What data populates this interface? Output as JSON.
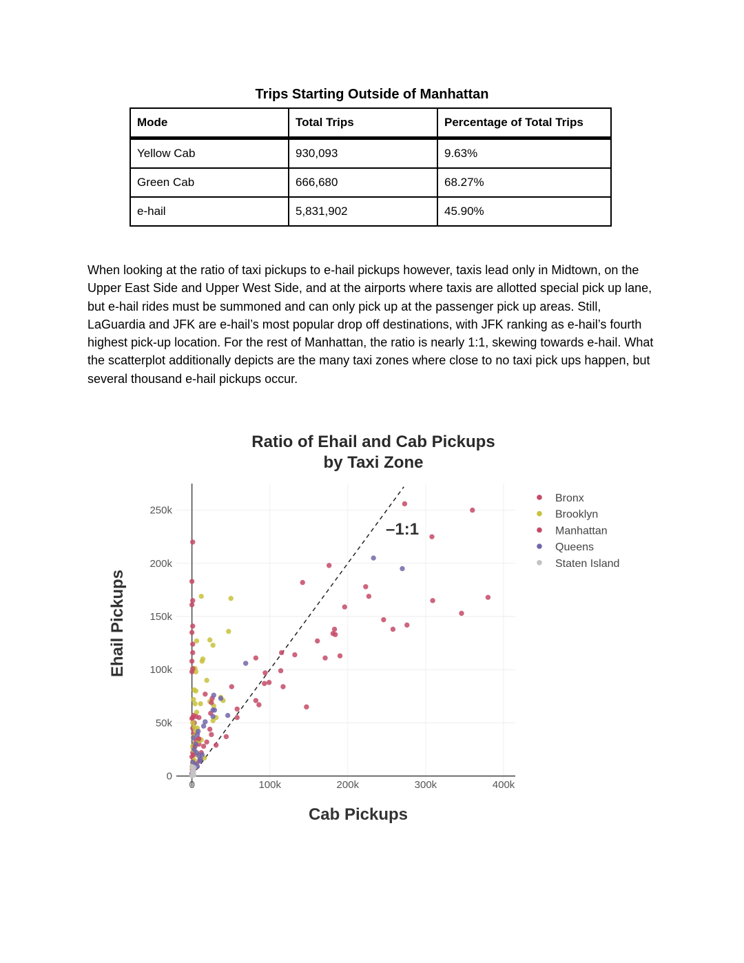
{
  "table": {
    "title": "Trips Starting Outside of Manhattan",
    "headers": [
      "Mode",
      "Total Trips",
      "Percentage of Total Trips"
    ],
    "rows": [
      [
        "Yellow Cab",
        "930,093",
        "9.63%"
      ],
      [
        "Green Cab",
        "666,680",
        "68.27%"
      ],
      [
        "e-hail",
        "5,831,902",
        "45.90%"
      ]
    ]
  },
  "paragraph": "When looking at the ratio of taxi pickups to e-hail pickups however, taxis lead only in Midtown, on the Upper East Side and Upper West Side, and at the airports where taxis are allotted special pick up lane, but e-hail rides must be summoned and can only pick up at the passenger pick up areas. Still, LaGuardia and JFK are e-hail’s most popular drop off destinations, with JFK ranking as e-hail’s fourth highest pick-up location. For the rest of Manhattan, the ratio is nearly 1:1, skewing towards e-hail. What the scatterplot additionally depicts are the many taxi zones where close to no taxi pick ups happen, but several thousand e-hail pickups occur.",
  "chart_data": {
    "type": "scatter",
    "title": [
      "Ratio of Ehail and Cab Pickups",
      "by Taxi Zone"
    ],
    "xlabel": "Cab Pickups",
    "ylabel": "Ehail Pickups",
    "xlim": [
      -20000,
      415000
    ],
    "ylim": [
      -10000,
      275000
    ],
    "x_ticks": [
      0,
      100000,
      200000,
      300000,
      400000
    ],
    "x_tick_labels": [
      "0",
      "100k",
      "200k",
      "300k",
      "400k"
    ],
    "y_ticks": [
      0,
      50000,
      100000,
      150000,
      200000,
      250000
    ],
    "y_tick_labels": [
      "0",
      "50k",
      "100k",
      "150k",
      "200k",
      "250k"
    ],
    "grid": true,
    "legend_position": "top-right",
    "annotation": "–1:1",
    "reference_line": {
      "style": "dashed",
      "slope": 1
    },
    "series": [
      {
        "name": "Bronx",
        "color": "#c44a66",
        "points": [
          [
            0,
            2000
          ],
          [
            500,
            6000
          ],
          [
            1000,
            10000
          ],
          [
            1500,
            14000
          ],
          [
            0,
            18000
          ],
          [
            1000,
            22000
          ],
          [
            2000,
            26000
          ],
          [
            3000,
            30000
          ],
          [
            5000,
            33000
          ],
          [
            8000,
            35000
          ],
          [
            2000,
            40000
          ],
          [
            1000,
            45000
          ],
          [
            3000,
            50000
          ],
          [
            0,
            54000
          ],
          [
            2000,
            57000
          ],
          [
            10000,
            15000
          ],
          [
            6000,
            12000
          ],
          [
            4000,
            8000
          ],
          [
            12000,
            22000
          ],
          [
            15000,
            28000
          ],
          [
            9000,
            30000
          ]
        ]
      },
      {
        "name": "Brooklyn",
        "color": "#c8c23c",
        "points": [
          [
            12000,
            169000
          ],
          [
            50000,
            167000
          ],
          [
            47000,
            136000
          ],
          [
            23000,
            128000
          ],
          [
            6000,
            127000
          ],
          [
            27000,
            123000
          ],
          [
            14000,
            110000
          ],
          [
            13000,
            108000
          ],
          [
            2000,
            101000
          ],
          [
            4000,
            101000
          ],
          [
            5000,
            98000
          ],
          [
            19000,
            90000
          ],
          [
            3000,
            81000
          ],
          [
            5000,
            80000
          ],
          [
            2000,
            72000
          ],
          [
            4000,
            68000
          ],
          [
            11000,
            68000
          ],
          [
            40000,
            71000
          ],
          [
            37000,
            74000
          ],
          [
            28000,
            66000
          ],
          [
            23000,
            70000
          ],
          [
            6000,
            60000
          ],
          [
            31000,
            55000
          ],
          [
            27000,
            52000
          ],
          [
            1000,
            50000
          ],
          [
            3000,
            46000
          ],
          [
            7000,
            45000
          ],
          [
            5000,
            42000
          ],
          [
            2000,
            37000
          ],
          [
            12000,
            34000
          ],
          [
            9000,
            33000
          ],
          [
            4000,
            30000
          ],
          [
            1000,
            28000
          ],
          [
            2000,
            24000
          ],
          [
            6000,
            20000
          ],
          [
            16000,
            17000
          ],
          [
            3000,
            15000
          ],
          [
            1000,
            12000
          ],
          [
            500,
            8000
          ],
          [
            1500,
            5000
          ]
        ]
      },
      {
        "name": "Manhattan",
        "color": "#c44a66",
        "points": [
          [
            273000,
            256000
          ],
          [
            360000,
            250000
          ],
          [
            308000,
            225000
          ],
          [
            1000,
            220000
          ],
          [
            176000,
            198000
          ],
          [
            0,
            183000
          ],
          [
            142000,
            182000
          ],
          [
            1000,
            165000
          ],
          [
            0,
            161000
          ],
          [
            223000,
            178000
          ],
          [
            227000,
            169000
          ],
          [
            309000,
            165000
          ],
          [
            380000,
            168000
          ],
          [
            196000,
            159000
          ],
          [
            346000,
            153000
          ],
          [
            246000,
            147000
          ],
          [
            258000,
            138000
          ],
          [
            276000,
            142000
          ],
          [
            1000,
            141000
          ],
          [
            0,
            135000
          ],
          [
            183000,
            138000
          ],
          [
            181000,
            134000
          ],
          [
            184000,
            133000
          ],
          [
            161000,
            127000
          ],
          [
            1000,
            124000
          ],
          [
            115000,
            116000
          ],
          [
            132000,
            114000
          ],
          [
            190000,
            113000
          ],
          [
            171000,
            111000
          ],
          [
            82000,
            111000
          ],
          [
            1000,
            116000
          ],
          [
            0,
            108000
          ],
          [
            1000,
            101000
          ],
          [
            0,
            98000
          ],
          [
            114000,
            99000
          ],
          [
            94000,
            97000
          ],
          [
            99000,
            88000
          ],
          [
            93000,
            87000
          ],
          [
            117000,
            84000
          ],
          [
            51000,
            84000
          ],
          [
            82000,
            71000
          ],
          [
            86000,
            67000
          ],
          [
            147000,
            65000
          ],
          [
            58000,
            63000
          ],
          [
            58000,
            55000
          ],
          [
            5000,
            56000
          ],
          [
            1000,
            55000
          ],
          [
            24000,
            59000
          ],
          [
            26000,
            73000
          ],
          [
            25000,
            69000
          ],
          [
            17000,
            77000
          ],
          [
            9000,
            55000
          ],
          [
            23000,
            44000
          ],
          [
            44000,
            37000
          ],
          [
            25000,
            39000
          ],
          [
            31000,
            29000
          ],
          [
            19000,
            32000
          ],
          [
            9000,
            35000
          ],
          [
            4000,
            28000
          ],
          [
            2000,
            20000
          ]
        ]
      },
      {
        "name": "Queens",
        "color": "#7266aa",
        "points": [
          [
            233000,
            205000
          ],
          [
            270000,
            195000
          ],
          [
            69000,
            106000
          ],
          [
            28000,
            76000
          ],
          [
            37000,
            73000
          ],
          [
            27000,
            62000
          ],
          [
            29000,
            62000
          ],
          [
            46000,
            57000
          ],
          [
            27000,
            56000
          ],
          [
            17000,
            51000
          ],
          [
            15000,
            47000
          ],
          [
            8000,
            42000
          ],
          [
            7000,
            39000
          ],
          [
            2000,
            36000
          ],
          [
            5000,
            30000
          ],
          [
            3000,
            25000
          ],
          [
            6000,
            22000
          ],
          [
            9000,
            19000
          ],
          [
            11000,
            16000
          ],
          [
            1000,
            13000
          ],
          [
            4000,
            11000
          ],
          [
            7000,
            9000
          ],
          [
            2000,
            6000
          ],
          [
            0,
            3000
          ],
          [
            10000,
            14000
          ],
          [
            13000,
            20000
          ]
        ]
      },
      {
        "name": "Staten Island",
        "color": "#c4c4c4",
        "points": [
          [
            0,
            0
          ],
          [
            1000,
            1500
          ],
          [
            2000,
            3000
          ],
          [
            500,
            4000
          ],
          [
            1500,
            6000
          ],
          [
            3000,
            8000
          ],
          [
            2500,
            1000
          ],
          [
            0,
            9000
          ]
        ]
      }
    ]
  }
}
